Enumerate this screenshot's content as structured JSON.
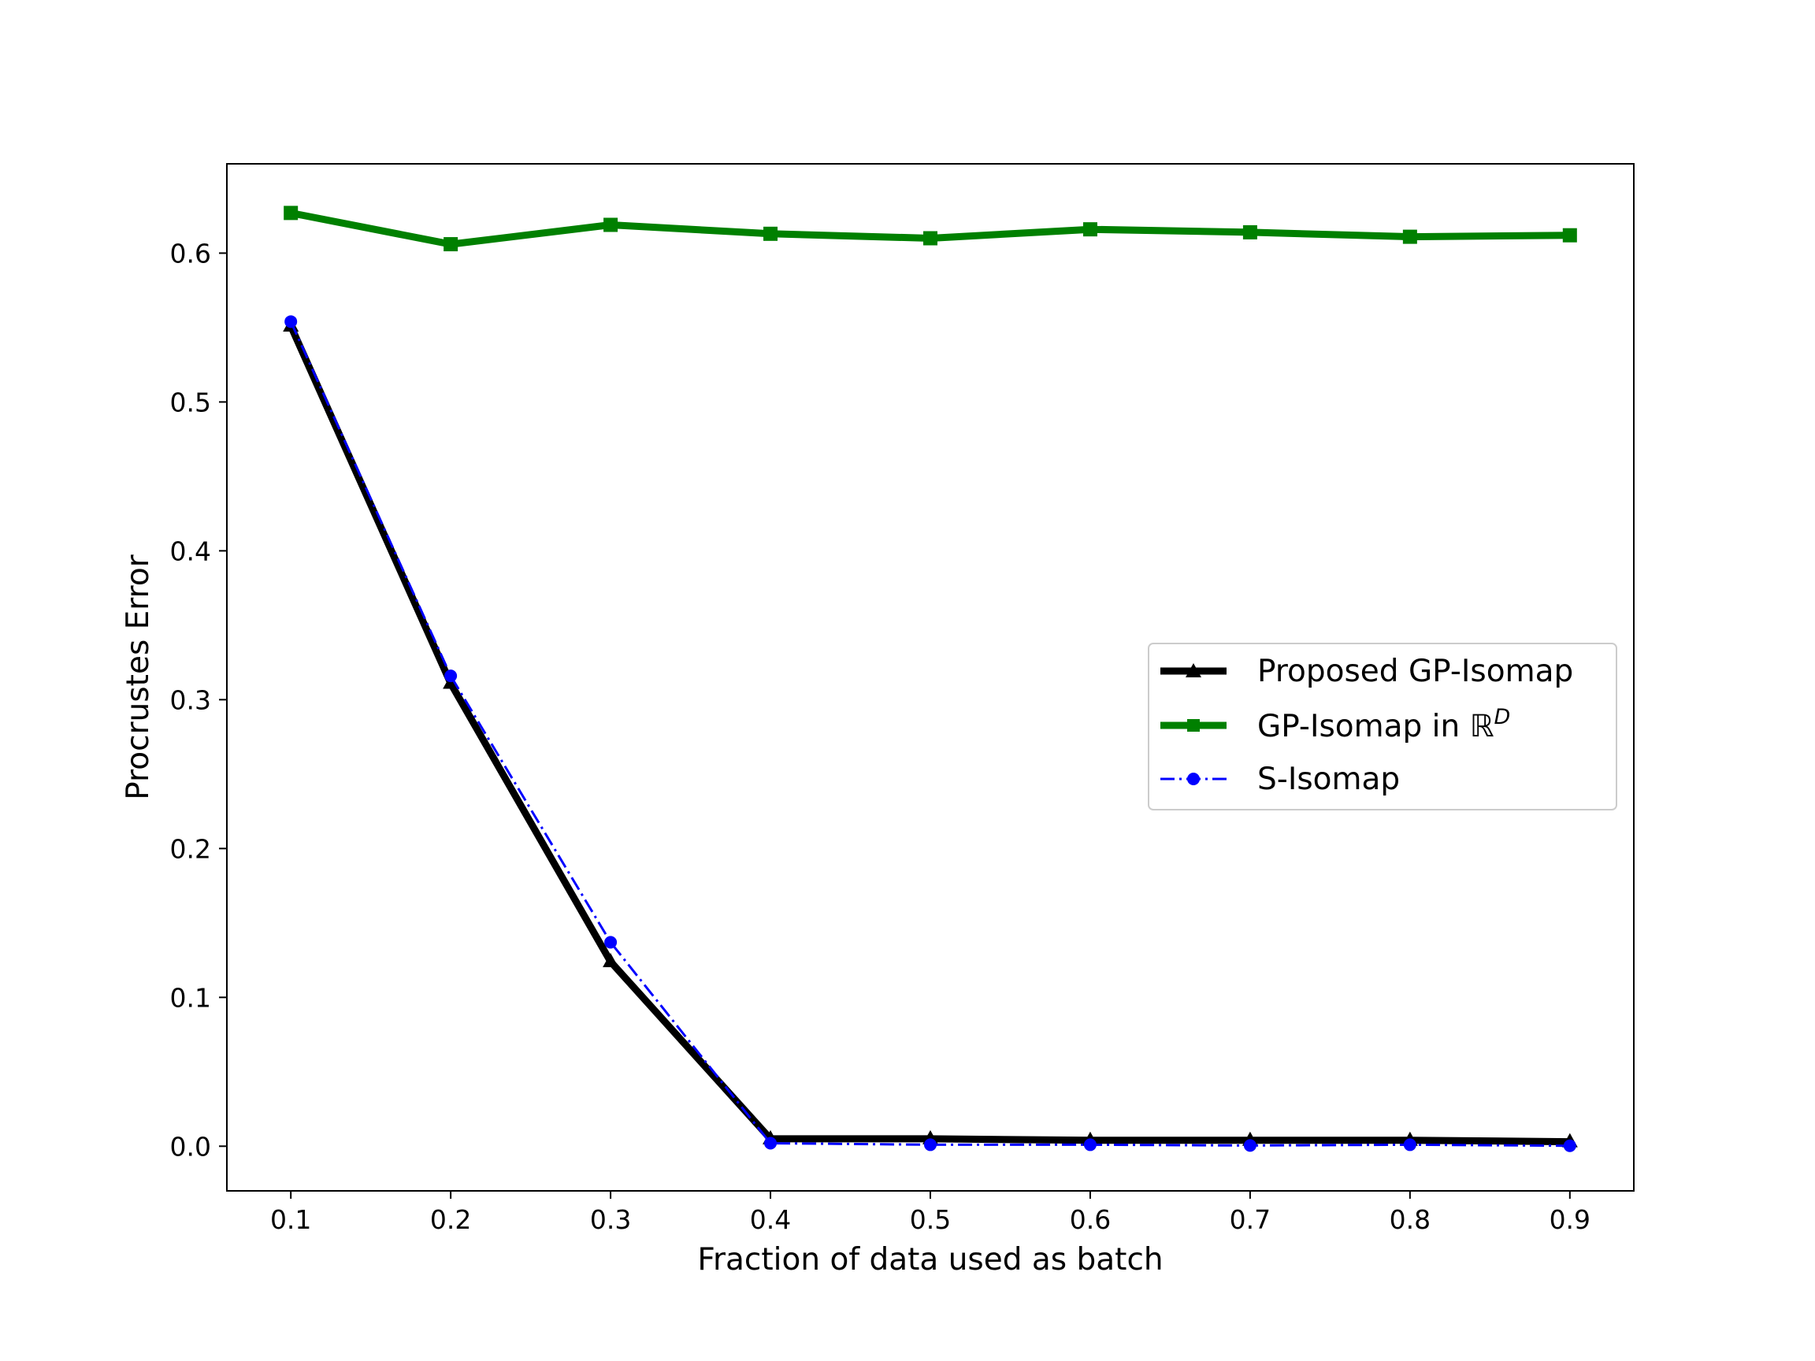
{
  "chart_data": {
    "type": "line",
    "title": "",
    "xlabel": "Fraction of data used as batch",
    "ylabel": "Procrustes Error",
    "x": [
      0.1,
      0.2,
      0.3,
      0.4,
      0.5,
      0.6,
      0.7,
      0.8,
      0.9
    ],
    "xticks": [
      "0.1",
      "0.2",
      "0.3",
      "0.4",
      "0.5",
      "0.6",
      "0.7",
      "0.8",
      "0.9"
    ],
    "yticks": [
      "0.0",
      "0.1",
      "0.2",
      "0.3",
      "0.4",
      "0.5",
      "0.6"
    ],
    "xlim": [
      0.06,
      0.94
    ],
    "ylim": [
      -0.03,
      0.66
    ],
    "grid": false,
    "legend_position": "center-right",
    "series": [
      {
        "name": "Proposed GP-Isomap",
        "values": [
          0.551,
          0.311,
          0.124,
          0.005,
          0.005,
          0.004,
          0.004,
          0.004,
          0.003
        ],
        "color": "#000000",
        "marker": "triangle",
        "linestyle": "solid"
      },
      {
        "name_prefix": "GP-Isomap in ",
        "name_symbol": "ℝ",
        "name_superscript": "D",
        "values": [
          0.627,
          0.606,
          0.619,
          0.613,
          0.61,
          0.616,
          0.614,
          0.611,
          0.612
        ],
        "color": "#008000",
        "marker": "square",
        "linestyle": "solid"
      },
      {
        "name": "S-Isomap",
        "values": [
          0.554,
          0.316,
          0.137,
          0.002,
          0.001,
          0.001,
          0.0005,
          0.001,
          0.0003
        ],
        "color": "#0000ff",
        "marker": "circle",
        "linestyle": "dashdot"
      }
    ]
  }
}
